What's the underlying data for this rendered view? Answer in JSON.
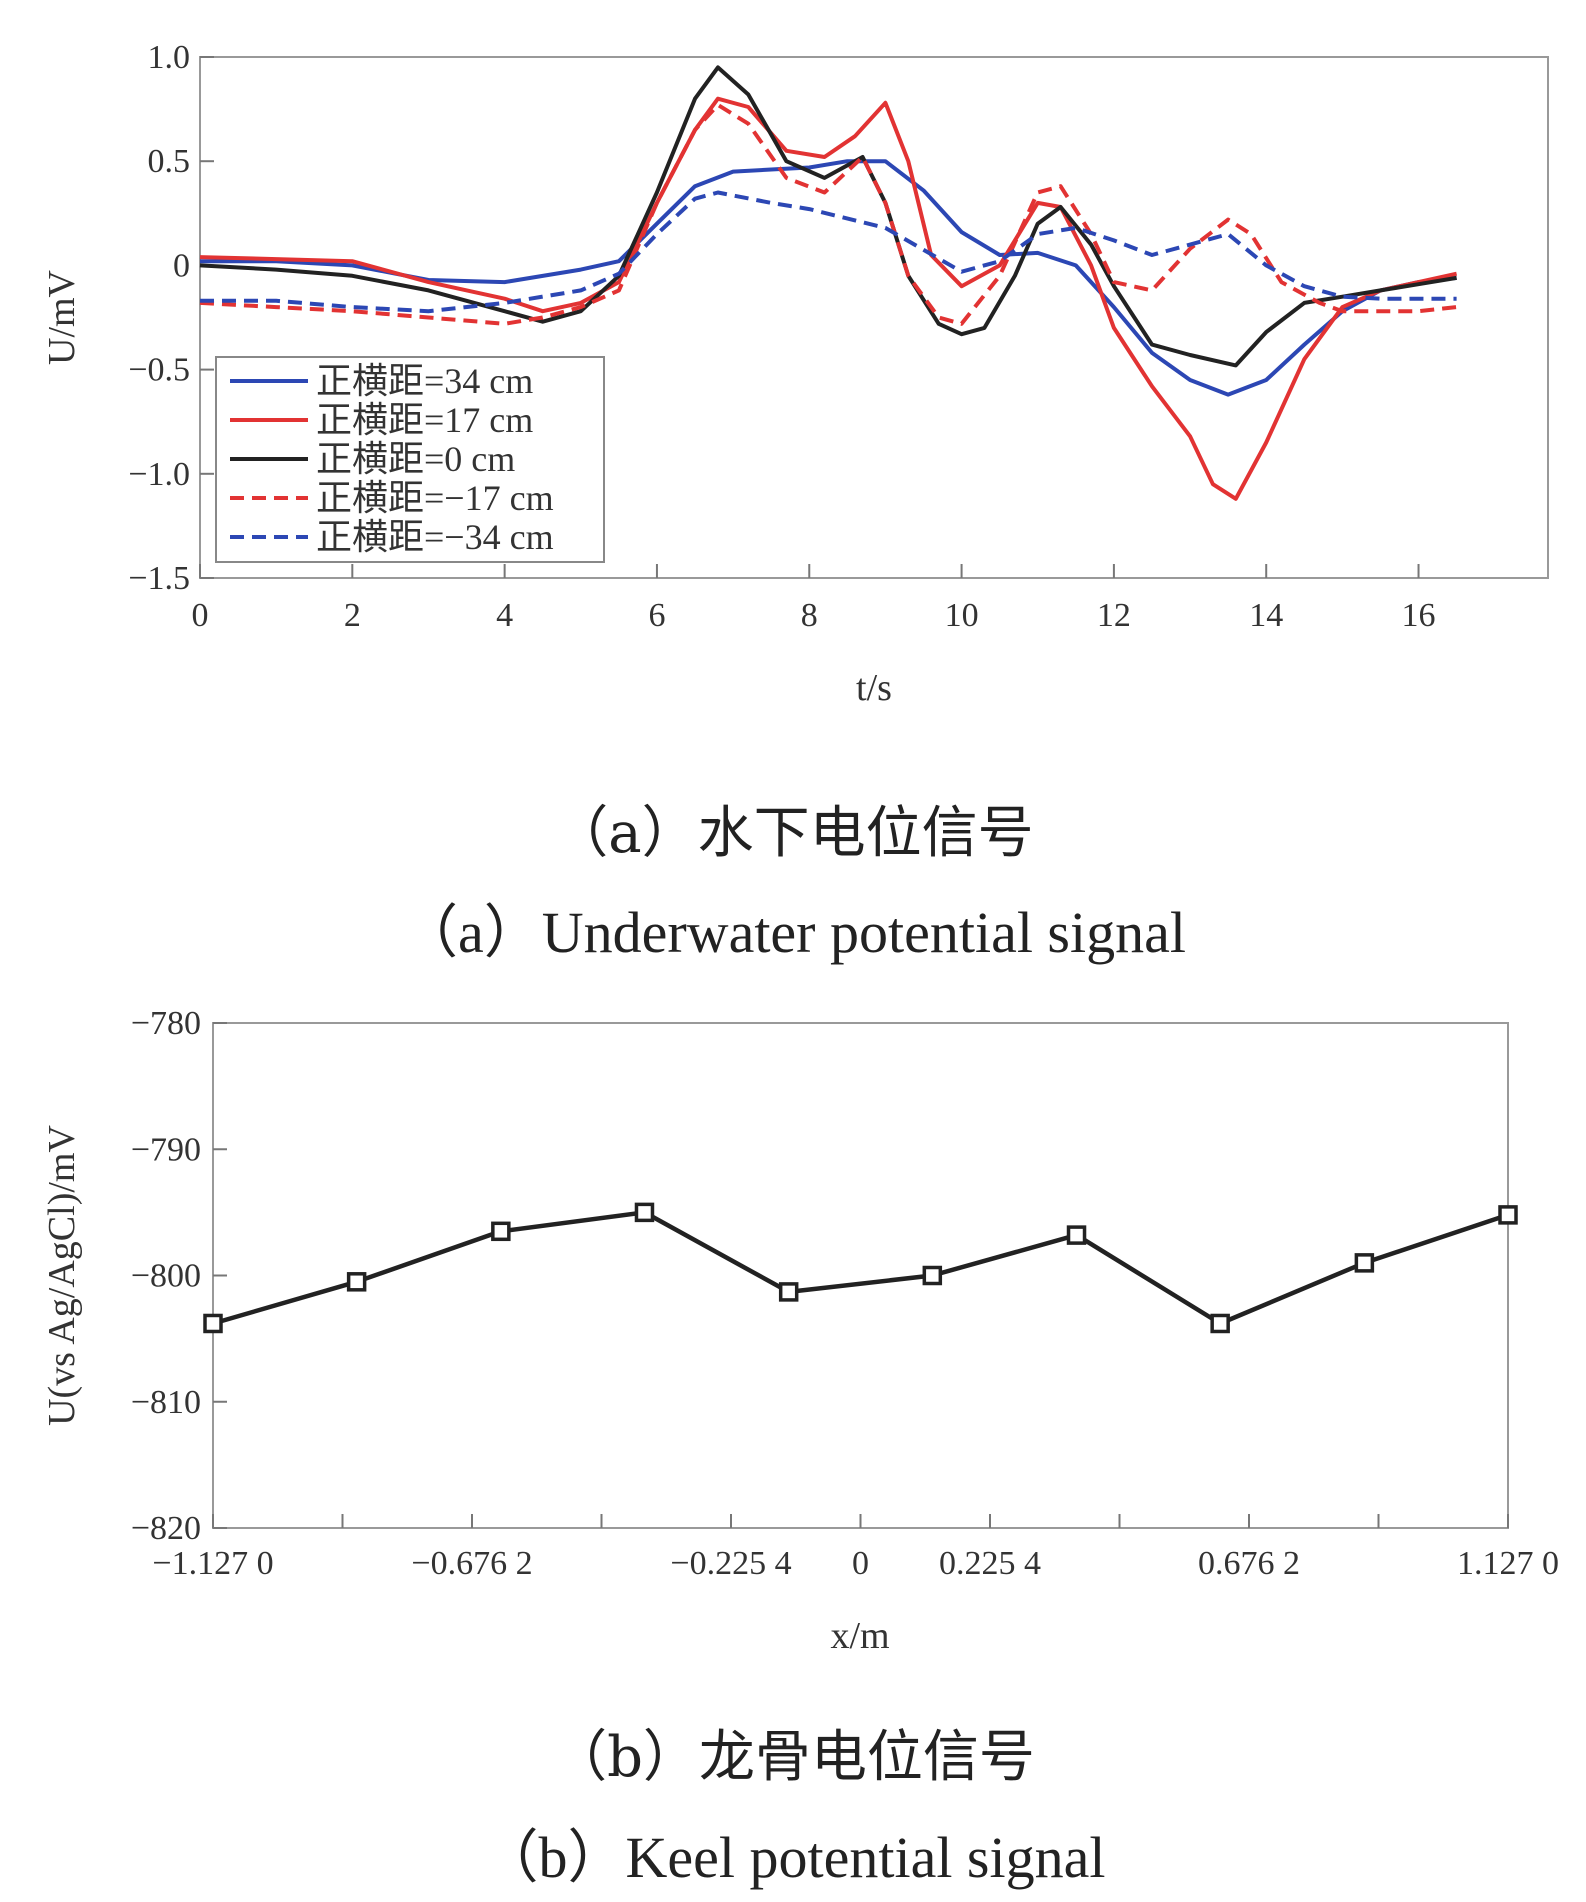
{
  "chart_data": [
    {
      "type": "line",
      "caption_zh": "（a）水下电位信号",
      "caption_en": "（a）Underwater potential signal",
      "xlabel": "t/s",
      "ylabel": "U/mV",
      "xlim": [
        0,
        17.7
      ],
      "ylim": [
        -1.5,
        1.0
      ],
      "xticks": [
        "0",
        "2",
        "4",
        "6",
        "8",
        "10",
        "12",
        "14",
        "16"
      ],
      "yticks": [
        "1.0",
        "0.5",
        "0",
        "−0.5",
        "−1.0",
        "−1.5"
      ],
      "legend_position": "lower-left",
      "series": [
        {
          "name": "正横距=34 cm",
          "color": "#2c47b4",
          "dash": false,
          "x": [
            0,
            1,
            2,
            3,
            4,
            5,
            5.5,
            6,
            6.5,
            7,
            7.5,
            8,
            8.5,
            9,
            9.5,
            10,
            10.5,
            11,
            11.5,
            12,
            12.5,
            13,
            13.5,
            14,
            14.5,
            15,
            15.5,
            16,
            16.5
          ],
          "y": [
            0.02,
            0.02,
            0.0,
            -0.07,
            -0.08,
            -0.02,
            0.02,
            0.2,
            0.38,
            0.45,
            0.46,
            0.47,
            0.5,
            0.5,
            0.36,
            0.16,
            0.05,
            0.06,
            0.0,
            -0.2,
            -0.42,
            -0.55,
            -0.62,
            -0.55,
            -0.38,
            -0.22,
            -0.12,
            -0.08,
            -0.06
          ]
        },
        {
          "name": "正横距=17 cm",
          "color": "#e23333",
          "dash": false,
          "x": [
            0,
            1,
            2,
            3,
            4,
            4.5,
            5,
            5.5,
            6,
            6.5,
            6.8,
            7.2,
            7.7,
            8.2,
            8.6,
            9,
            9.3,
            9.6,
            10,
            10.5,
            11,
            11.3,
            11.7,
            12,
            12.5,
            13,
            13.3,
            13.6,
            14,
            14.5,
            15,
            15.5,
            16,
            16.5
          ],
          "y": [
            0.04,
            0.03,
            0.02,
            -0.08,
            -0.16,
            -0.22,
            -0.18,
            -0.08,
            0.3,
            0.65,
            0.8,
            0.76,
            0.55,
            0.52,
            0.62,
            0.78,
            0.5,
            0.05,
            -0.1,
            0.0,
            0.3,
            0.28,
            0.0,
            -0.3,
            -0.58,
            -0.82,
            -1.05,
            -1.12,
            -0.85,
            -0.45,
            -0.2,
            -0.12,
            -0.08,
            -0.04
          ]
        },
        {
          "name": "正横距=0 cm",
          "color": "#222222",
          "dash": false,
          "x": [
            0,
            1,
            2,
            3,
            4,
            4.5,
            5,
            5.5,
            6,
            6.5,
            6.8,
            7.2,
            7.7,
            8.2,
            8.7,
            9,
            9.3,
            9.7,
            10,
            10.3,
            10.7,
            11,
            11.3,
            11.7,
            12,
            12.5,
            13,
            13.6,
            14,
            14.5,
            15,
            15.5,
            16,
            16.5
          ],
          "y": [
            0.0,
            -0.02,
            -0.05,
            -0.12,
            -0.22,
            -0.27,
            -0.22,
            -0.05,
            0.35,
            0.8,
            0.95,
            0.82,
            0.5,
            0.42,
            0.52,
            0.3,
            -0.05,
            -0.28,
            -0.33,
            -0.3,
            -0.05,
            0.2,
            0.28,
            0.1,
            -0.1,
            -0.38,
            -0.43,
            -0.48,
            -0.32,
            -0.18,
            -0.15,
            -0.12,
            -0.09,
            -0.06
          ]
        },
        {
          "name": "正横距=−17 cm",
          "color": "#e23333",
          "dash": true,
          "x": [
            0,
            1,
            2,
            3,
            4,
            4.5,
            5,
            5.5,
            6,
            6.5,
            6.8,
            7.2,
            7.7,
            8.2,
            8.7,
            9,
            9.3,
            9.7,
            10,
            10.5,
            11,
            11.3,
            11.7,
            12,
            12.5,
            13,
            13.5,
            13.8,
            14.2,
            14.7,
            15,
            15.5,
            16,
            16.5
          ],
          "y": [
            -0.18,
            -0.2,
            -0.22,
            -0.25,
            -0.28,
            -0.25,
            -0.2,
            -0.12,
            0.3,
            0.65,
            0.77,
            0.68,
            0.42,
            0.35,
            0.52,
            0.3,
            -0.05,
            -0.25,
            -0.28,
            -0.05,
            0.35,
            0.38,
            0.15,
            -0.08,
            -0.12,
            0.08,
            0.22,
            0.15,
            -0.08,
            -0.18,
            -0.22,
            -0.22,
            -0.22,
            -0.2
          ]
        },
        {
          "name": "正横距=−34 cm",
          "color": "#2c47b4",
          "dash": true,
          "x": [
            0,
            1,
            2,
            3,
            4,
            5,
            5.5,
            6,
            6.5,
            6.8,
            7.5,
            8,
            9,
            10,
            10.5,
            11,
            11.5,
            12,
            12.5,
            13,
            13.5,
            14,
            14.5,
            15,
            15.5,
            16,
            16.5
          ],
          "y": [
            -0.17,
            -0.17,
            -0.2,
            -0.22,
            -0.18,
            -0.12,
            -0.04,
            0.15,
            0.32,
            0.35,
            0.3,
            0.27,
            0.18,
            -0.03,
            0.02,
            0.15,
            0.18,
            0.12,
            0.05,
            0.1,
            0.15,
            0.0,
            -0.1,
            -0.15,
            -0.16,
            -0.16,
            -0.16
          ]
        }
      ]
    },
    {
      "type": "line",
      "caption_zh": "（b）龙骨电位信号",
      "caption_en": "（b）Keel potential signal",
      "xlabel": "x/m",
      "ylabel": "U(vs Ag/AgCl)/mV",
      "xlim": [
        -1.127,
        1.127
      ],
      "ylim": [
        -820,
        -780
      ],
      "xticks": [
        "−1.127 0",
        "−0.676 2",
        "−0.225 4",
        "0",
        "0.225 4",
        "0.676 2",
        "1.127 0"
      ],
      "yticks": [
        "−780",
        "−790",
        "−800",
        "−810",
        "−820"
      ],
      "series": [
        {
          "name": "",
          "color": "#222222",
          "marker": "square",
          "x": [
            -1.127,
            -0.877,
            -0.626,
            -0.376,
            -0.125,
            0.125,
            0.376,
            0.626,
            0.877,
            1.127
          ],
          "y": [
            -803.8,
            -800.5,
            -796.5,
            -795.0,
            -801.3,
            -800.0,
            -796.8,
            -803.8,
            -799.0,
            -795.2
          ]
        }
      ]
    }
  ]
}
